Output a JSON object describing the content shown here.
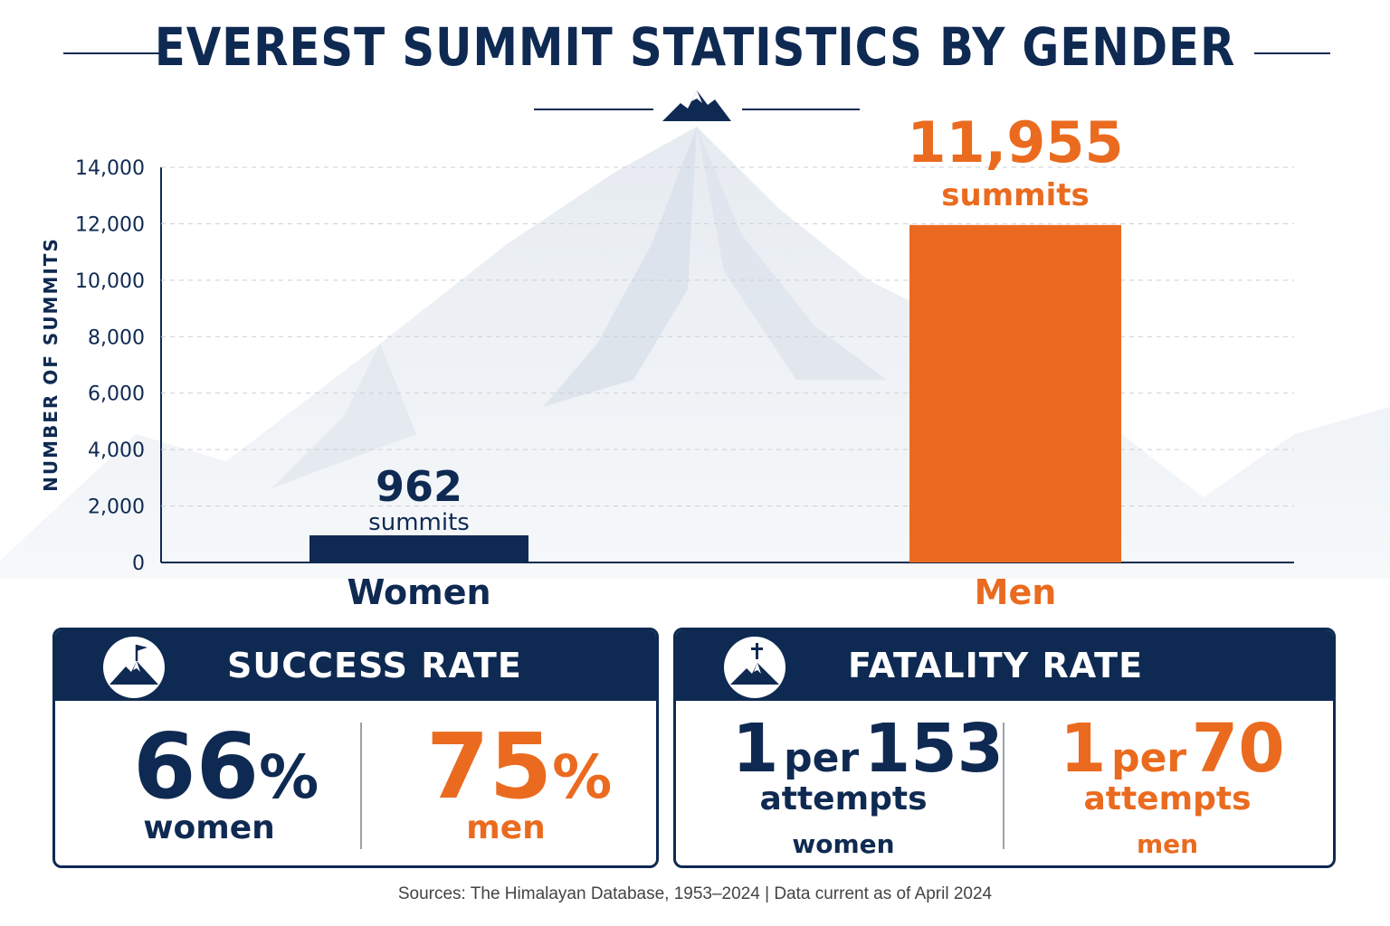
{
  "title": "EVEREST SUMMIT STATISTICS BY GENDER",
  "chart_data": {
    "type": "bar",
    "categories": [
      "Women",
      "Men"
    ],
    "values": [
      962,
      11955
    ],
    "value_labels": [
      "962",
      "11,955"
    ],
    "value_unit": "summits",
    "ylabel": "NUMBER OF SUMMITS",
    "ylim": [
      0,
      14000
    ],
    "yticks": [
      0,
      2000,
      4000,
      6000,
      8000,
      10000,
      12000,
      14000
    ],
    "ytick_labels": [
      "0",
      "2,000",
      "4,000",
      "6,000",
      "8,000",
      "10,000",
      "12,000",
      "14,000"
    ],
    "colors": [
      "#0f2a52",
      "#ea6b1f"
    ],
    "grid": true
  },
  "success_rate": {
    "title": "SUCCESS RATE",
    "icon": "mountain-flag-icon",
    "women": {
      "number": "66",
      "unit": "%",
      "label": "women"
    },
    "men": {
      "number": "75",
      "unit": "%",
      "label": "men"
    }
  },
  "fatality_rate": {
    "title": "FATALITY RATE",
    "icon": "mountain-cross-icon",
    "women": {
      "one": "1",
      "per": "per",
      "number": "153",
      "attempts": "attempts",
      "label": "women"
    },
    "men": {
      "one": "1",
      "per": "per",
      "number": "70",
      "attempts": "attempts",
      "label": "men"
    }
  },
  "sources": "Sources: The Himalayan Database, 1953–2024   |   Data current as of April 2024",
  "colors": {
    "navy": "#0f2a52",
    "orange": "#ea6b1f"
  }
}
